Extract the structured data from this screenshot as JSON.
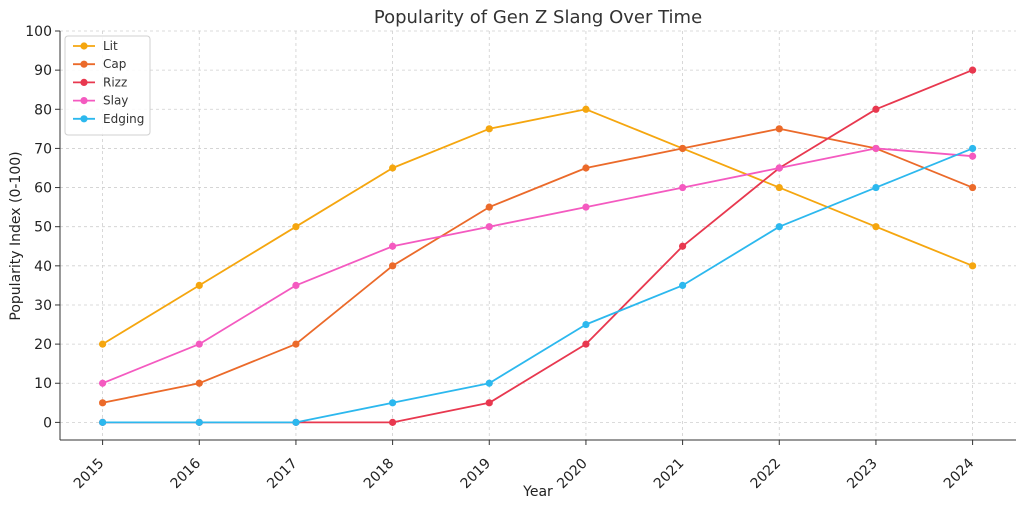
{
  "chart_data": {
    "type": "line",
    "title": "Popularity of Gen Z Slang Over Time",
    "xlabel": "Year",
    "ylabel": "Popularity Index (0-100)",
    "categories": [
      "2015",
      "2016",
      "2017",
      "2018",
      "2019",
      "2020",
      "2021",
      "2022",
      "2023",
      "2024"
    ],
    "ylim": [
      -4.5,
      100
    ],
    "yticks": [
      0,
      10,
      20,
      30,
      40,
      50,
      60,
      70,
      80,
      90,
      100
    ],
    "ytick_labels": [
      "0",
      "10",
      "20",
      "30",
      "40",
      "50",
      "60",
      "70",
      "80",
      "90",
      "100"
    ],
    "grid": true,
    "legend_position": "top-left",
    "series": [
      {
        "name": "Lit",
        "color": "#F5A60F",
        "values": [
          20,
          35,
          50,
          65,
          75,
          80,
          70,
          60,
          50,
          40
        ]
      },
      {
        "name": "Cap",
        "color": "#EB6A2A",
        "values": [
          5,
          10,
          20,
          40,
          55,
          65,
          70,
          75,
          70,
          60
        ]
      },
      {
        "name": "Rizz",
        "color": "#E8384F",
        "values": [
          0,
          0,
          0,
          0,
          5,
          20,
          45,
          65,
          80,
          90
        ]
      },
      {
        "name": "Slay",
        "color": "#F45AC0",
        "values": [
          10,
          20,
          35,
          45,
          50,
          55,
          60,
          65,
          70,
          68
        ]
      },
      {
        "name": "Edging",
        "color": "#2CB8EE",
        "values": [
          0,
          0,
          0,
          5,
          10,
          25,
          35,
          50,
          60,
          70
        ]
      }
    ]
  }
}
